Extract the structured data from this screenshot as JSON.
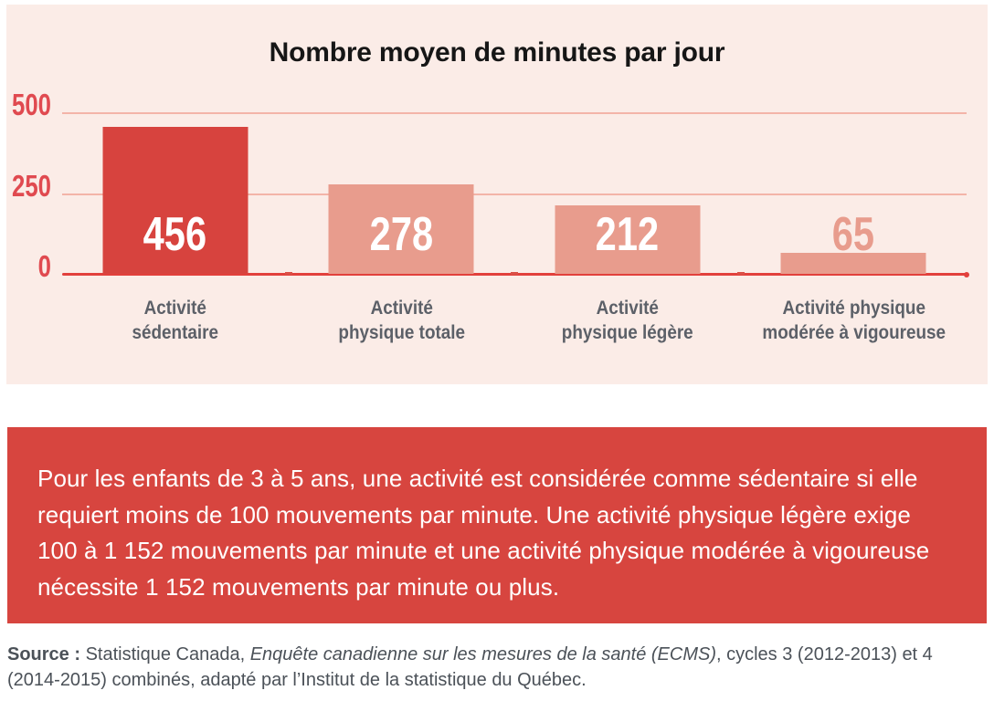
{
  "chart_data": {
    "type": "bar",
    "title": "Nombre moyen de minutes par jour",
    "categories": [
      "Activité sédentaire",
      "Activité physique totale",
      "Activité physique légère",
      "Activité physique modérée à vigoureuse"
    ],
    "category_label_lines": [
      [
        "Activité",
        "sédentaire"
      ],
      [
        "Activité",
        "physique totale"
      ],
      [
        "Activité",
        "physique légère"
      ],
      [
        "Activité physique",
        "modérée à vigoureuse"
      ]
    ],
    "values": [
      456,
      278,
      212,
      65
    ],
    "xlabel": "",
    "ylabel": "",
    "ylim": [
      0,
      500
    ],
    "yticks": [
      500,
      250,
      0
    ],
    "grid": true,
    "legend": false,
    "bar_colors": [
      "#d7433e",
      "#e89c8d",
      "#e89c8d",
      "#e89c8d"
    ],
    "value_label_colors": [
      "#ffffff",
      "#ffffff",
      "#ffffff",
      "#e89c8d"
    ],
    "value_label_position": [
      "inside-bottom",
      "inside-bottom",
      "inside-bottom",
      "above"
    ],
    "colors": {
      "panel_bg": "#fbece7",
      "axis": "#e2403c",
      "gridline": "#f3b4a8",
      "ytick_label": "#e04a50",
      "category_label": "#5c6068",
      "title": "#161616"
    }
  },
  "info_box": {
    "bg_color": "#d7453f",
    "text": "Pour les enfants de 3 à 5 ans, une activité est considérée comme sédentaire si elle requiert moins de 100 mouvements par minute. Une activité physique légère exige 100 à 1 152 mouvements par minute et une activité physique modérée à vigoureuse nécessite 1 152 mouvements par minute ou plus."
  },
  "source": {
    "label": "Source :",
    "pre_italic": " Statistique Canada, ",
    "italic": "Enquête canadienne sur les mesures de la santé (ECMS)",
    "post_italic": ", cycles 3 (2012-2013) et 4 (2014-2015) combinés, adapté par l’Institut de la statistique du Québec."
  }
}
